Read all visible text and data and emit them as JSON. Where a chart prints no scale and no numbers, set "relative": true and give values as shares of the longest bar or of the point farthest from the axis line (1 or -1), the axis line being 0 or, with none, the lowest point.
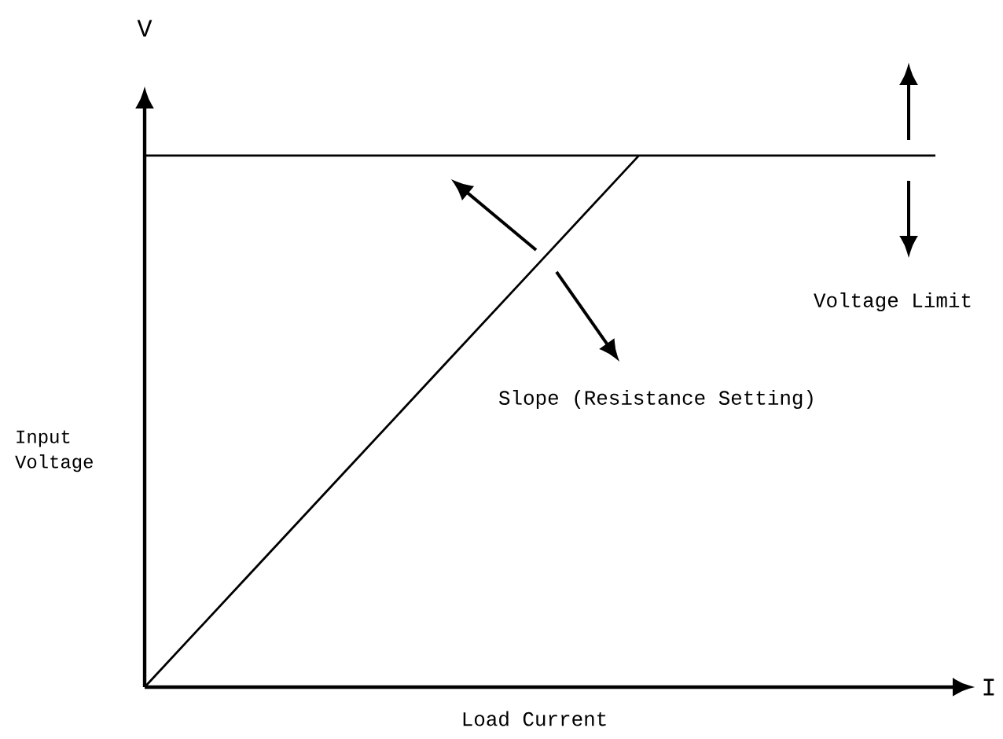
{
  "chart_data": {
    "type": "line",
    "relative": true,
    "xlabel": "Load Current",
    "ylabel": "Input Voltage",
    "annotations": [
      "V",
      "I",
      "Voltage Limit",
      "Slope (Resistance Setting)"
    ],
    "categories": [
      null,
      null,
      null,
      null,
      null,
      null,
      null,
      null,
      null
    ],
    "series": [
      {
        "color": "#000000",
        "values": [
          0,
          0.2,
          0.4,
          0.6,
          0.8,
          1,
          null,
          null,
          null
        ]
      },
      {
        "color": "#000000",
        "values": [
          1,
          1,
          1,
          1,
          1,
          1,
          1,
          1,
          1
        ]
      }
    ],
    "line_style": "solid",
    "marker": "none"
  }
}
